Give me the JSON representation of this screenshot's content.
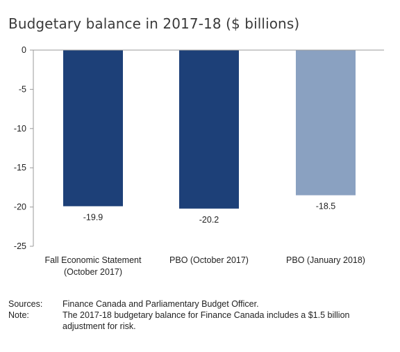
{
  "chart_data": {
    "type": "bar",
    "title": "Budgetary balance in 2017-18 ($ billions)",
    "categories": [
      [
        "Fall Economic Statement",
        "(October 2017)"
      ],
      [
        "PBO (October 2017)"
      ],
      [
        "PBO (January 2018)"
      ]
    ],
    "values": [
      -19.9,
      -20.2,
      -18.5
    ],
    "data_labels": [
      "-19.9",
      "-20.2",
      "-18.5"
    ],
    "bar_colors": [
      "#1d4078",
      "#1d4078",
      "#8aa1c1"
    ],
    "ylim": [
      -25,
      0
    ],
    "yticks": [
      0,
      -5,
      -10,
      -15,
      -20,
      -25
    ],
    "ytick_labels": [
      "0",
      "-5",
      "-10",
      "-15",
      "-20",
      "-25"
    ],
    "xlabel": "",
    "ylabel": "",
    "grid": false
  },
  "notes": [
    {
      "label": "Sources:",
      "text": "Finance Canada and Parliamentary Budget Officer."
    },
    {
      "label": "Note:",
      "text": "The 2017-18 budgetary balance for Finance Canada includes a $1.5 billion adjustment for risk."
    }
  ]
}
